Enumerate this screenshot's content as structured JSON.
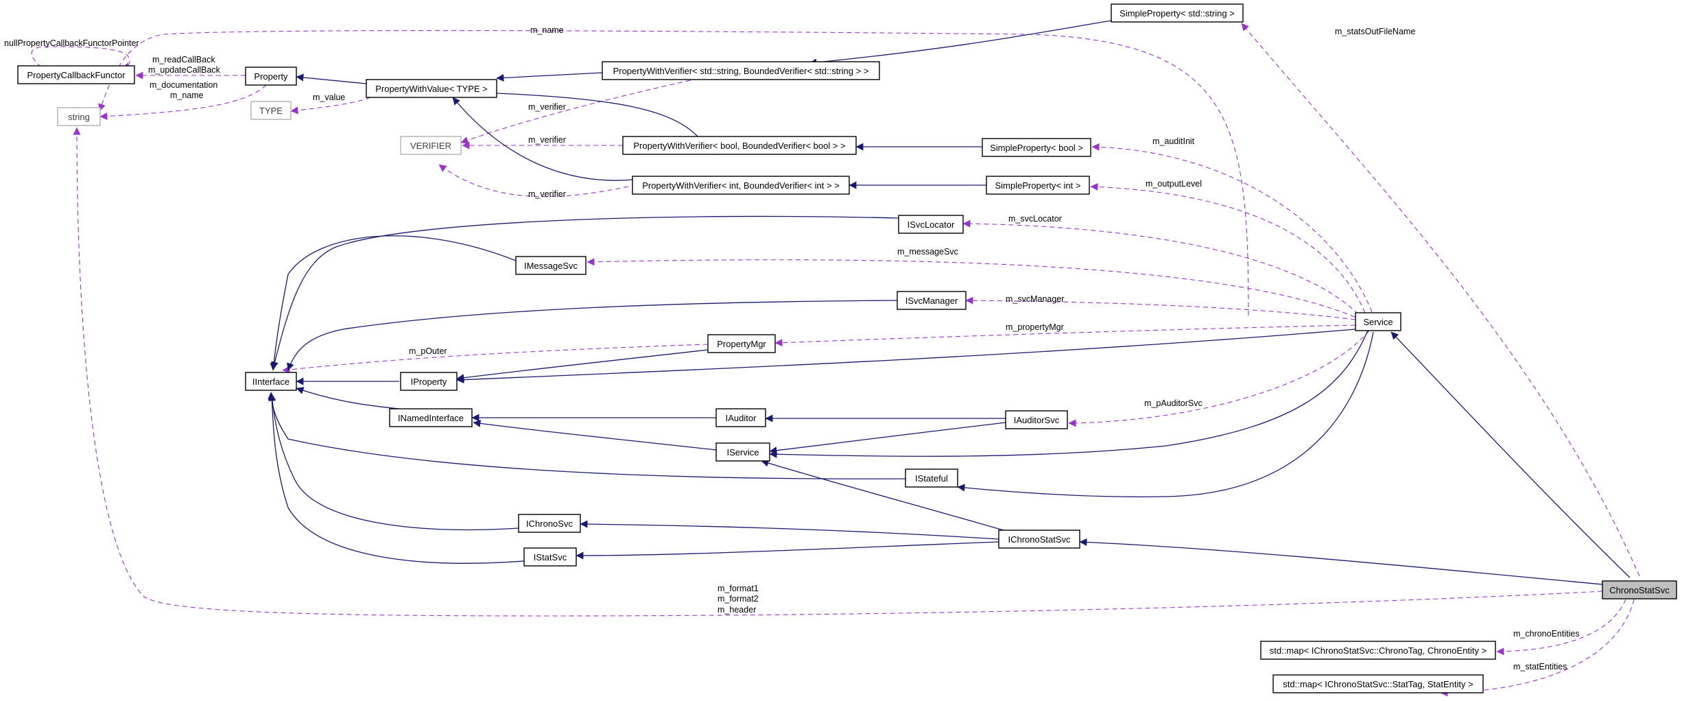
{
  "diagram": {
    "nodes": {
      "simpleprop_string": "SimpleProperty< std::string >",
      "property_callback_functor": "PropertyCallbackFunctor",
      "property": "Property",
      "property_with_value": "PropertyWithValue< TYPE >",
      "pwv_string": "PropertyWithVerifier< std::string, BoundedVerifier< std::string > >",
      "string": "string",
      "type": "TYPE",
      "verifier": "VERIFIER",
      "pwv_bool": "PropertyWithVerifier< bool, BoundedVerifier< bool > >",
      "simpleprop_bool": "SimpleProperty< bool >",
      "pwv_int": "PropertyWithVerifier< int, BoundedVerifier< int > >",
      "simpleprop_int": "SimpleProperty< int >",
      "isvclocator": "ISvcLocator",
      "imessagesvc": "IMessageSvc",
      "isvcmanager": "ISvcManager",
      "service": "Service",
      "propertymgr": "PropertyMgr",
      "iinterface": "IInterface",
      "iproperty": "IProperty",
      "inamedinterface": "INamedInterface",
      "iauditor": "IAuditor",
      "iauditorsvc": "IAuditorSvc",
      "iservice": "IService",
      "istateful": "IStateful",
      "ichronosvc": "IChronoSvc",
      "ichronostatsvc": "IChronoStatSvc",
      "istatsvc": "IStatSvc",
      "chronostatsvc": "ChronoStatSvc",
      "map_chrono": "std::map< IChronoStatSvc::ChronoTag, ChronoEntity >",
      "map_stat": "std::map< IChronoStatSvc::StatTag, StatEntity >"
    },
    "labels": {
      "m_name_top": "m_name",
      "m_statsOutFileName": "m_statsOutFileName",
      "nullPropertyCallbackFunctorPointer": "nullPropertyCallbackFunctorPointer",
      "m_readCallBack": "m_readCallBack",
      "m_updateCallBack": "m_updateCallBack",
      "m_documentation": "m_documentation",
      "m_name_string": "m_name",
      "m_value": "m_value",
      "m_verifier_1": "m_verifier",
      "m_verifier_2": "m_verifier",
      "m_verifier_3": "m_verifier",
      "m_auditInit": "m_auditInit",
      "m_outputLevel": "m_outputLevel",
      "m_svcLocator": "m_svcLocator",
      "m_messageSvc": "m_messageSvc",
      "m_svcManager": "m_svcManager",
      "m_propertyMgr": "m_propertyMgr",
      "m_pOuter": "m_pOuter",
      "m_pAuditorSvc": "m_pAuditorSvc",
      "m_format1": "m_format1",
      "m_format2": "m_format2",
      "m_header": "m_header",
      "m_chronoEntities": "m_chronoEntities",
      "m_statEntities": "m_statEntities"
    },
    "colors": {
      "inheritance_edge": "#191970",
      "usage_edge": "#9a32cd",
      "focus_node_fill": "#bfbfbf"
    }
  }
}
